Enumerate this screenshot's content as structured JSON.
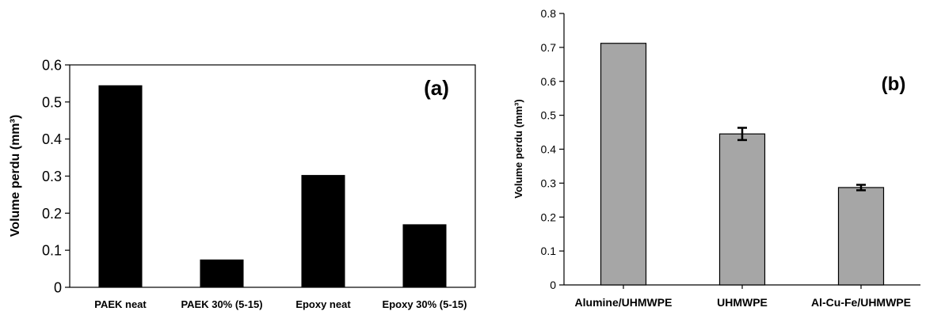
{
  "chart_data": [
    {
      "type": "bar",
      "panel_label": "(a)",
      "categories": [
        "PAEK neat",
        "PAEK 30% (5-15)",
        "Epoxy neat",
        "Epoxy 30% (5-15)"
      ],
      "values": [
        0.545,
        0.075,
        0.303,
        0.17
      ],
      "ylabel": "Volume perdu (mm³)",
      "ylim": [
        0,
        0.6
      ],
      "yticks": [
        "0",
        "0.1",
        "0.2",
        "0.3",
        "0.4",
        "0.5",
        "0.6"
      ],
      "bar_color": "#000000",
      "grid": false
    },
    {
      "type": "bar",
      "panel_label": "(b)",
      "categories": [
        "Alumine/UHMWPE",
        "UHMWPE",
        "Al-Cu-Fe/UHMWPE"
      ],
      "values": [
        0.712,
        0.445,
        0.287
      ],
      "errors": [
        null,
        0.018,
        0.008
      ],
      "ylabel": "Volume perdu (mm³)",
      "ylim": [
        0,
        0.8
      ],
      "yticks": [
        "0",
        "0.1",
        "0.2",
        "0.3",
        "0.4",
        "0.5",
        "0.6",
        "0.7",
        "0.8"
      ],
      "bar_color": "#a6a6a6",
      "grid": false
    }
  ]
}
